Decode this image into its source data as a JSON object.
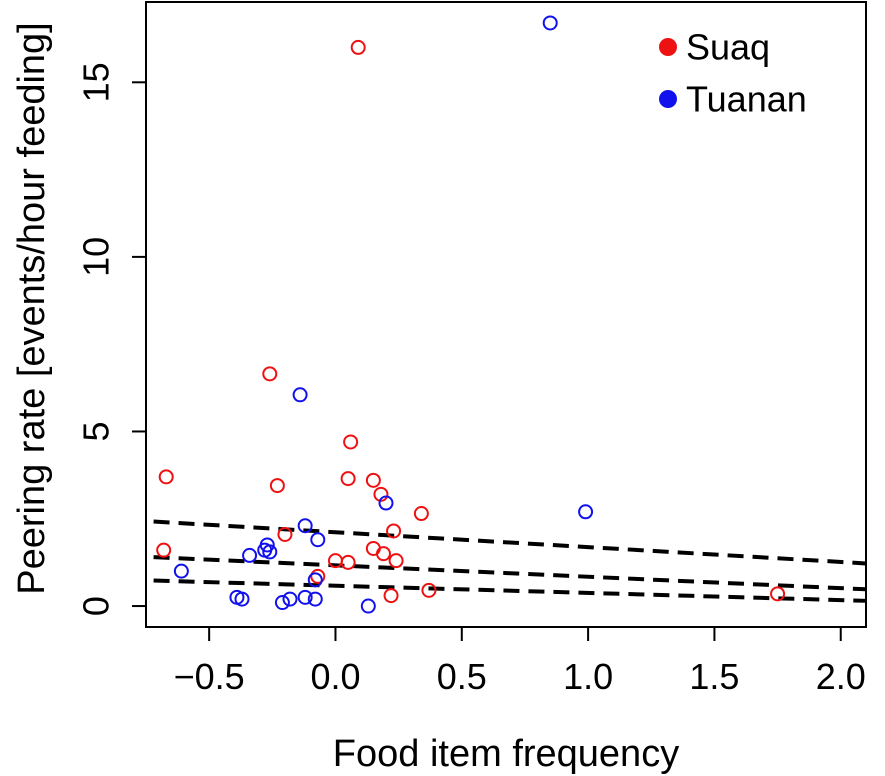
{
  "chart_data": {
    "type": "scatter",
    "title": "",
    "xlabel": "Food item frequency",
    "ylabel": "Peering rate [events/hour feeding]",
    "xlim": [
      -0.75,
      2.1
    ],
    "ylim": [
      -0.6,
      17.3
    ],
    "xticks": [
      -0.5,
      0.0,
      0.5,
      1.0,
      1.5,
      2.0
    ],
    "xtick_labels": [
      "−0.5",
      "0.0",
      "0.5",
      "1.0",
      "1.5",
      "2.0"
    ],
    "yticks": [
      0,
      5,
      10,
      15
    ],
    "ytick_labels": [
      "0",
      "5",
      "10",
      "15"
    ],
    "grid": false,
    "legend_position": "top-right",
    "series": [
      {
        "name": "Suaq",
        "color": "#ee1111",
        "points": [
          {
            "x": 0.09,
            "y": 16.0
          },
          {
            "x": -0.26,
            "y": 6.65
          },
          {
            "x": 0.06,
            "y": 4.7
          },
          {
            "x": -0.67,
            "y": 3.7
          },
          {
            "x": 0.05,
            "y": 3.65
          },
          {
            "x": 0.15,
            "y": 3.6
          },
          {
            "x": -0.23,
            "y": 3.45
          },
          {
            "x": 0.18,
            "y": 3.2
          },
          {
            "x": 0.34,
            "y": 2.65
          },
          {
            "x": 0.23,
            "y": 2.15
          },
          {
            "x": -0.2,
            "y": 2.05
          },
          {
            "x": -0.68,
            "y": 1.6
          },
          {
            "x": 0.15,
            "y": 1.65
          },
          {
            "x": 0.19,
            "y": 1.5
          },
          {
            "x": 0.0,
            "y": 1.3
          },
          {
            "x": 0.05,
            "y": 1.25
          },
          {
            "x": 0.24,
            "y": 1.3
          },
          {
            "x": -0.07,
            "y": 0.85
          },
          {
            "x": 0.37,
            "y": 0.45
          },
          {
            "x": 0.22,
            "y": 0.3
          },
          {
            "x": 1.75,
            "y": 0.35
          }
        ]
      },
      {
        "name": "Tuanan",
        "color": "#1111ee",
        "points": [
          {
            "x": 0.85,
            "y": 16.7
          },
          {
            "x": -0.14,
            "y": 6.05
          },
          {
            "x": 0.2,
            "y": 2.95
          },
          {
            "x": 0.99,
            "y": 2.7
          },
          {
            "x": -0.12,
            "y": 2.3
          },
          {
            "x": -0.07,
            "y": 1.9
          },
          {
            "x": -0.27,
            "y": 1.75
          },
          {
            "x": -0.28,
            "y": 1.6
          },
          {
            "x": -0.26,
            "y": 1.55
          },
          {
            "x": -0.34,
            "y": 1.45
          },
          {
            "x": -0.61,
            "y": 1.0
          },
          {
            "x": -0.08,
            "y": 0.75
          },
          {
            "x": -0.39,
            "y": 0.25
          },
          {
            "x": -0.37,
            "y": 0.2
          },
          {
            "x": -0.12,
            "y": 0.25
          },
          {
            "x": -0.08,
            "y": 0.2
          },
          {
            "x": -0.18,
            "y": 0.2
          },
          {
            "x": -0.21,
            "y": 0.1
          },
          {
            "x": 0.13,
            "y": 0.0
          }
        ]
      }
    ],
    "lines": [
      {
        "name": "fit-upper",
        "style": "dashed",
        "color": "#000000",
        "points": [
          [
            -0.72,
            2.42
          ],
          [
            2.1,
            1.22
          ]
        ]
      },
      {
        "name": "fit-middle",
        "style": "dashed",
        "color": "#000000",
        "points": [
          [
            -0.72,
            1.4
          ],
          [
            2.1,
            0.48
          ]
        ]
      },
      {
        "name": "fit-lower",
        "style": "dashed",
        "color": "#000000",
        "points": [
          [
            -0.72,
            0.73
          ],
          [
            2.1,
            0.15
          ]
        ]
      }
    ]
  }
}
